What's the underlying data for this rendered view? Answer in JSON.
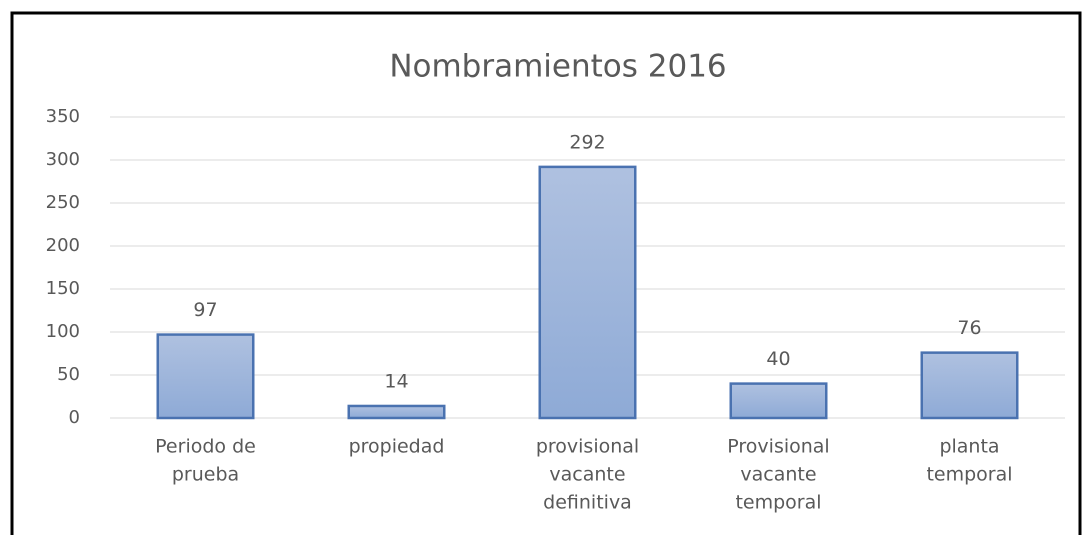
{
  "chart_data": {
    "type": "bar",
    "title": "Nombramientos 2016",
    "categories": [
      [
        "Periodo de",
        "prueba"
      ],
      [
        "propiedad"
      ],
      [
        "provisional",
        "vacante",
        "definitiva"
      ],
      [
        "Provisional",
        "vacante",
        "temporal"
      ],
      [
        "planta",
        "temporal"
      ]
    ],
    "values": [
      97,
      14,
      292,
      40,
      76
    ],
    "color": "#a3b8dc",
    "ylim": [
      0,
      350
    ],
    "yticks": [
      0,
      50,
      100,
      150,
      200,
      250,
      300,
      350
    ],
    "grid": true
  }
}
